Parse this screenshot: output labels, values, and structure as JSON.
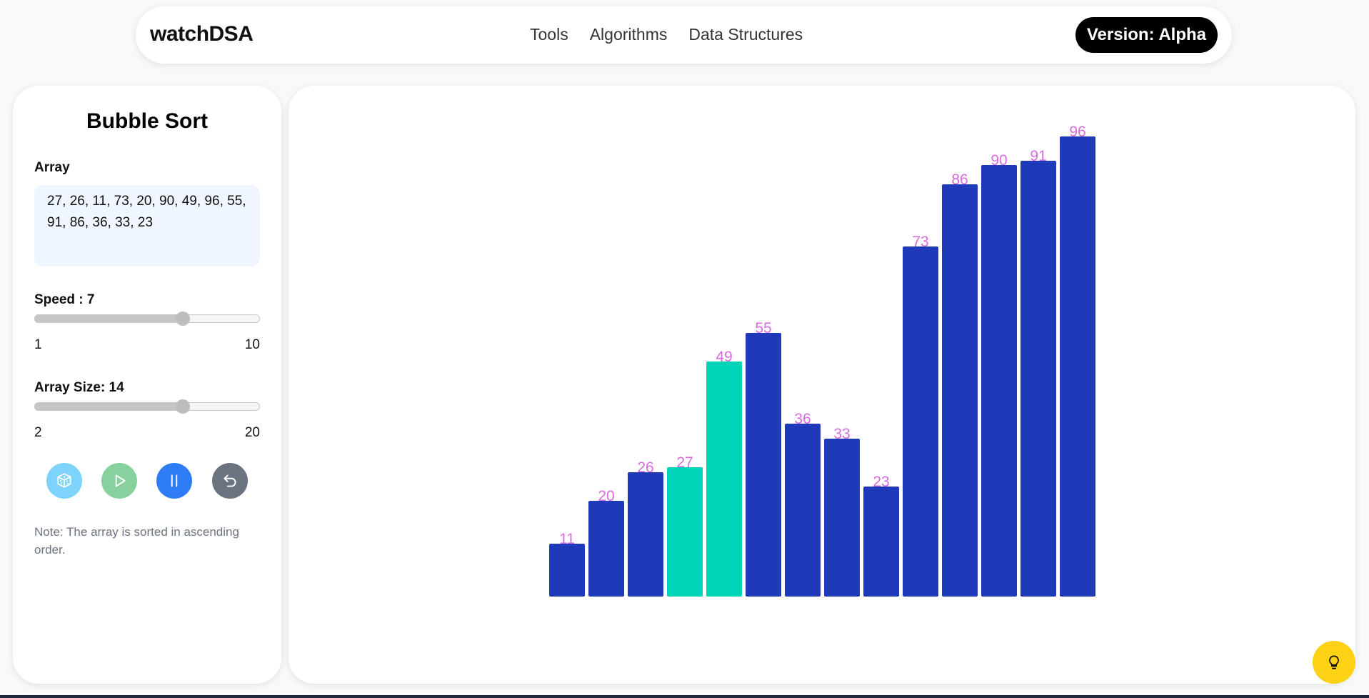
{
  "nav": {
    "brand": "watchDSA",
    "links": [
      "Tools",
      "Algorithms",
      "Data Structures"
    ],
    "version": "Version: Alpha"
  },
  "panel": {
    "title": "Bubble Sort",
    "array_label": "Array",
    "array_value": "27, 26, 11, 73, 20, 90, 49, 96, 55, 91, 86, 36, 33, 23",
    "speed": {
      "label": "Speed : 7",
      "min": "1",
      "max": "10",
      "value": 7,
      "min_num": 1,
      "max_num": 10
    },
    "size": {
      "label": "Array Size: 14",
      "min": "2",
      "max": "20",
      "value": 14,
      "min_num": 2,
      "max_num": 20
    },
    "buttons": [
      {
        "name": "shuffle-button",
        "icon": "dice-icon",
        "color": "#7dd3fc"
      },
      {
        "name": "play-button",
        "icon": "play-icon",
        "color": "#86d19e"
      },
      {
        "name": "pause-button",
        "icon": "pause-icon",
        "color": "#2f7df6"
      },
      {
        "name": "reset-button",
        "icon": "undo-icon",
        "color": "#6b7280"
      }
    ],
    "note": "Note: The array is sorted in ascending order."
  },
  "chart_data": {
    "type": "bar",
    "values": [
      11,
      20,
      26,
      27,
      49,
      55,
      36,
      33,
      23,
      73,
      86,
      90,
      91,
      96
    ],
    "highlighted": [
      3,
      4
    ],
    "colors": {
      "default": "#1e3ab8",
      "highlight": "#00d4b8",
      "label": "#d86be0"
    },
    "ylim": [
      0,
      96
    ]
  },
  "hint": {
    "icon": "lightbulb-icon",
    "color": "#fcd116"
  }
}
